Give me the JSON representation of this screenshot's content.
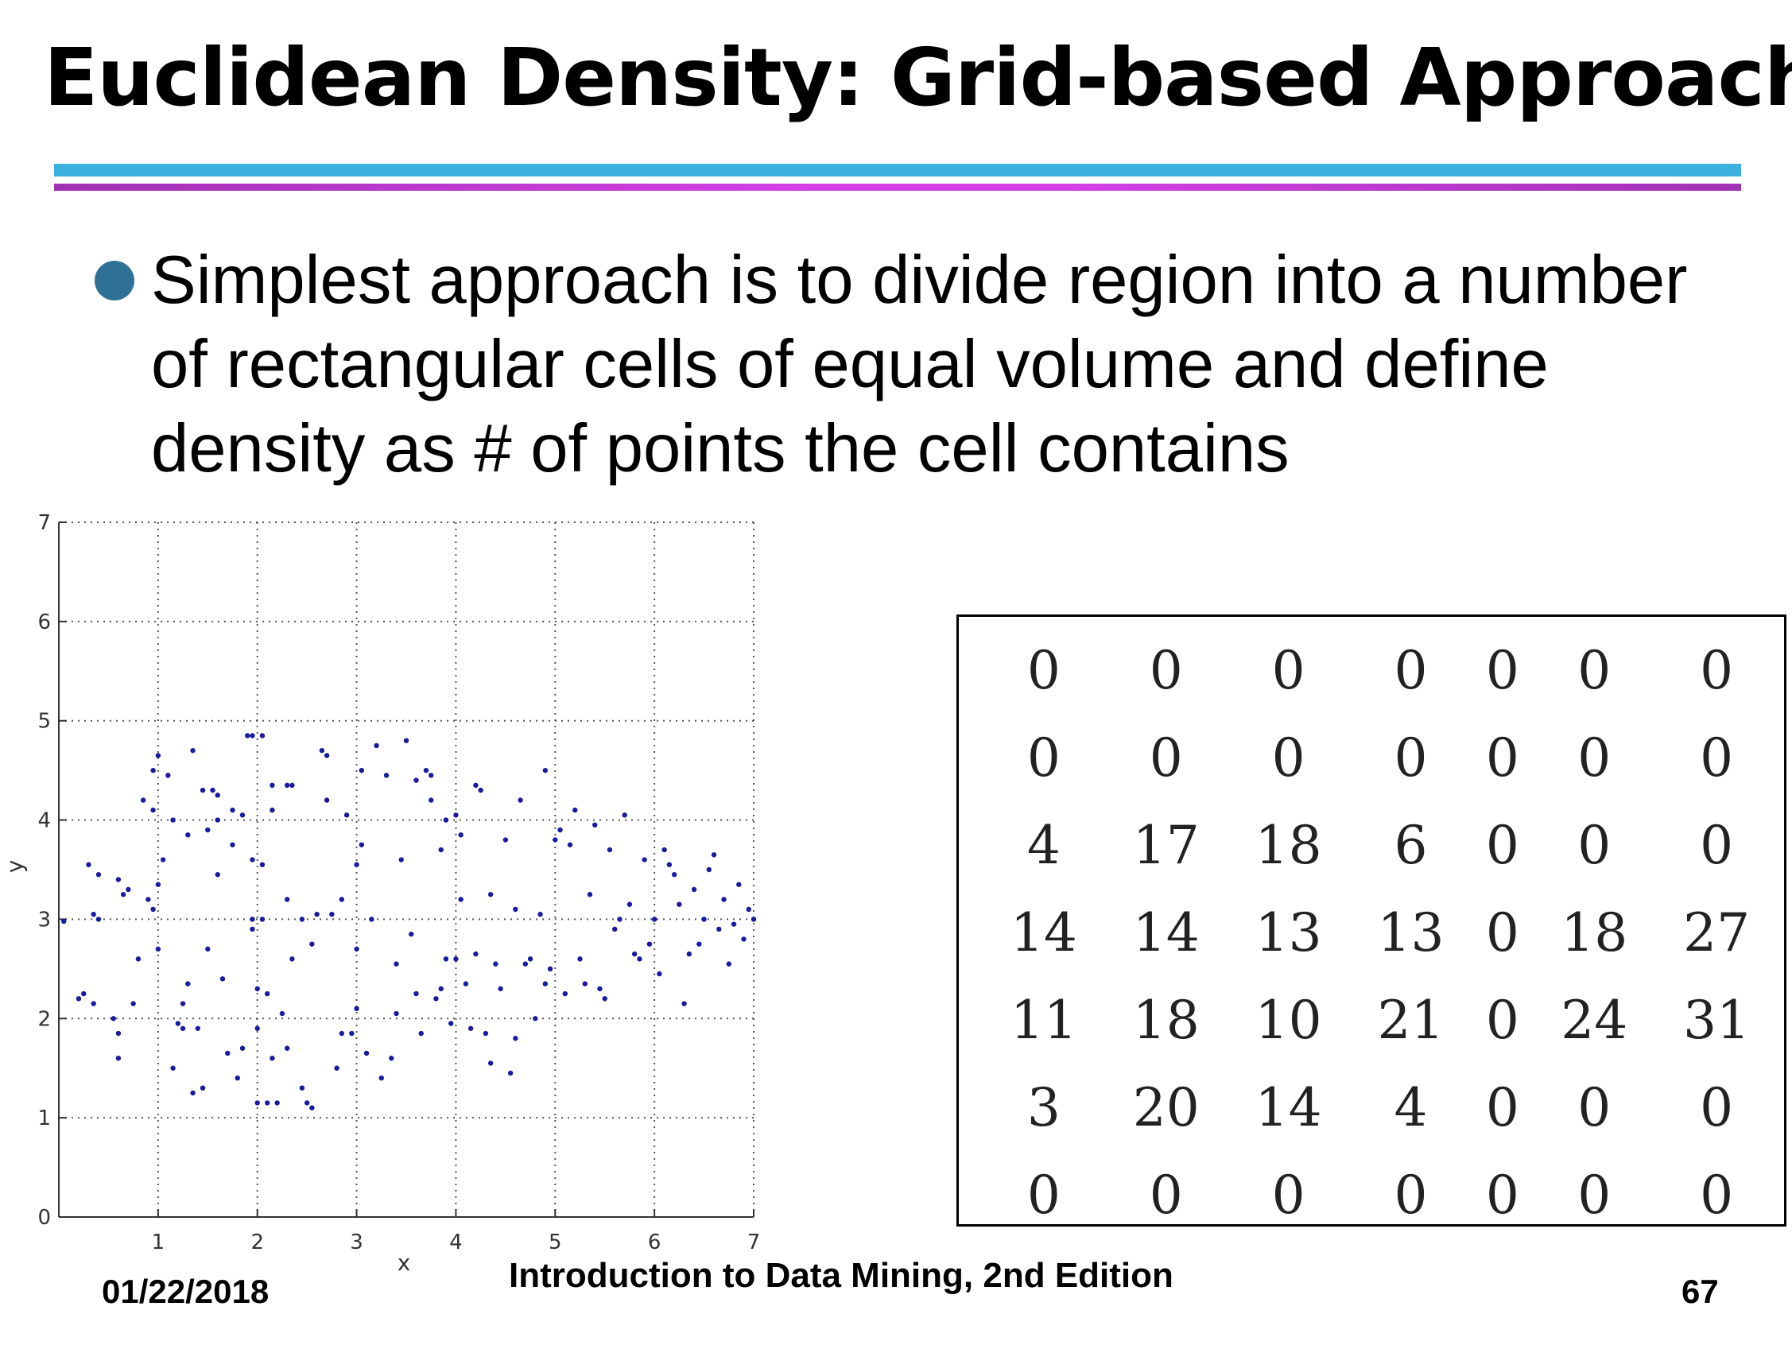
{
  "slide": {
    "title": "Euclidean Density: Grid-based Approach",
    "bullet": "Simplest approach is to divide region into a number of rectangular cells of equal volume and define density as # of points the cell contains"
  },
  "footer": {
    "date": "01/22/2018",
    "center": "Introduction to Data Mining, 2nd Edition",
    "page": "67"
  },
  "colors": {
    "rule_blue": "#3cb1e0",
    "rule_purple": "#c63ad6",
    "bullet": "#2f7196",
    "points": "#1a1aa0"
  },
  "matrix": {
    "rows": [
      [
        "0",
        "0",
        "0",
        "0",
        "0",
        "0",
        "0"
      ],
      [
        "0",
        "0",
        "0",
        "0",
        "0",
        "0",
        "0"
      ],
      [
        "4",
        "17",
        "18",
        "6",
        "0",
        "0",
        "0"
      ],
      [
        "14",
        "14",
        "13",
        "13",
        "0",
        "18",
        "27"
      ],
      [
        "11",
        "18",
        "10",
        "21",
        "0",
        "24",
        "31"
      ],
      [
        "3",
        "20",
        "14",
        "4",
        "0",
        "0",
        "0"
      ],
      [
        "0",
        "0",
        "0",
        "0",
        "0",
        "0",
        "0"
      ]
    ]
  },
  "chart_data": {
    "type": "scatter",
    "xlabel": "x",
    "ylabel": "y",
    "xlim": [
      0,
      7
    ],
    "ylim": [
      0,
      7
    ],
    "grid": true,
    "xticks": [
      "1",
      "2",
      "3",
      "4",
      "5",
      "6",
      "7"
    ],
    "yticks": [
      "0",
      "1",
      "2",
      "3",
      "4",
      "5",
      "6",
      "7"
    ],
    "series": [
      {
        "color": "#1a1aa0",
        "points": [
          [
            0.05,
            2.98
          ],
          [
            0.2,
            2.2
          ],
          [
            0.25,
            2.25
          ],
          [
            0.3,
            3.55
          ],
          [
            0.35,
            2.15
          ],
          [
            0.4,
            3.45
          ],
          [
            0.4,
            3.0
          ],
          [
            0.35,
            3.05
          ],
          [
            0.55,
            2.0
          ],
          [
            0.6,
            1.85
          ],
          [
            0.6,
            1.6
          ],
          [
            0.6,
            3.4
          ],
          [
            0.65,
            3.25
          ],
          [
            0.7,
            3.3
          ],
          [
            0.75,
            2.15
          ],
          [
            0.8,
            2.6
          ],
          [
            0.85,
            4.2
          ],
          [
            0.9,
            3.2
          ],
          [
            0.95,
            4.5
          ],
          [
            0.95,
            4.1
          ],
          [
            0.95,
            3.1
          ],
          [
            1.0,
            3.35
          ],
          [
            1.0,
            2.7
          ],
          [
            1.05,
            3.6
          ],
          [
            1.0,
            4.65
          ],
          [
            1.1,
            4.45
          ],
          [
            1.15,
            4.0
          ],
          [
            1.15,
            1.5
          ],
          [
            1.2,
            1.95
          ],
          [
            1.25,
            1.9
          ],
          [
            1.25,
            2.15
          ],
          [
            1.3,
            2.35
          ],
          [
            1.3,
            3.85
          ],
          [
            1.35,
            4.7
          ],
          [
            1.35,
            1.25
          ],
          [
            1.4,
            1.9
          ],
          [
            1.45,
            1.3
          ],
          [
            1.45,
            4.3
          ],
          [
            1.5,
            3.9
          ],
          [
            1.5,
            2.7
          ],
          [
            1.55,
            4.3
          ],
          [
            1.6,
            4.25
          ],
          [
            1.6,
            4.0
          ],
          [
            1.6,
            3.45
          ],
          [
            1.65,
            2.4
          ],
          [
            1.7,
            1.65
          ],
          [
            1.75,
            3.75
          ],
          [
            1.75,
            4.1
          ],
          [
            1.8,
            1.4
          ],
          [
            1.85,
            1.7
          ],
          [
            1.85,
            4.05
          ],
          [
            1.9,
            4.85
          ],
          [
            1.95,
            4.85
          ],
          [
            1.95,
            3.6
          ],
          [
            1.95,
            3.0
          ],
          [
            1.95,
            2.9
          ],
          [
            2.0,
            2.3
          ],
          [
            2.0,
            1.15
          ],
          [
            2.0,
            1.9
          ],
          [
            2.05,
            4.85
          ],
          [
            2.05,
            3.55
          ],
          [
            2.05,
            3.0
          ],
          [
            2.1,
            1.15
          ],
          [
            2.1,
            2.25
          ],
          [
            2.15,
            4.35
          ],
          [
            2.15,
            4.1
          ],
          [
            2.15,
            1.6
          ],
          [
            2.2,
            1.15
          ],
          [
            2.25,
            2.05
          ],
          [
            2.3,
            4.35
          ],
          [
            2.3,
            3.2
          ],
          [
            2.3,
            1.7
          ],
          [
            2.35,
            2.6
          ],
          [
            2.35,
            4.35
          ],
          [
            2.45,
            3.0
          ],
          [
            2.45,
            1.3
          ],
          [
            2.5,
            1.15
          ],
          [
            2.55,
            2.75
          ],
          [
            2.55,
            1.1
          ],
          [
            2.6,
            3.05
          ],
          [
            2.65,
            4.7
          ],
          [
            2.7,
            4.65
          ],
          [
            2.7,
            4.2
          ],
          [
            2.75,
            3.05
          ],
          [
            2.8,
            1.5
          ],
          [
            2.85,
            1.85
          ],
          [
            2.85,
            3.2
          ],
          [
            2.9,
            4.05
          ],
          [
            2.95,
            1.85
          ],
          [
            3.0,
            2.1
          ],
          [
            3.0,
            2.7
          ],
          [
            3.0,
            3.55
          ],
          [
            3.05,
            4.5
          ],
          [
            3.05,
            3.75
          ],
          [
            3.1,
            1.65
          ],
          [
            3.15,
            3.0
          ],
          [
            3.2,
            4.75
          ],
          [
            3.25,
            1.4
          ],
          [
            3.3,
            4.45
          ],
          [
            3.35,
            1.6
          ],
          [
            3.4,
            2.05
          ],
          [
            3.4,
            2.55
          ],
          [
            3.45,
            3.6
          ],
          [
            3.5,
            4.8
          ],
          [
            3.55,
            2.85
          ],
          [
            3.6,
            4.4
          ],
          [
            3.6,
            2.25
          ],
          [
            3.65,
            1.85
          ],
          [
            3.7,
            4.5
          ],
          [
            3.75,
            4.45
          ],
          [
            3.75,
            4.2
          ],
          [
            3.8,
            2.2
          ],
          [
            3.85,
            2.3
          ],
          [
            3.85,
            3.7
          ],
          [
            3.9,
            2.6
          ],
          [
            3.9,
            4.0
          ],
          [
            3.95,
            1.95
          ],
          [
            4.0,
            4.05
          ],
          [
            4.0,
            2.6
          ],
          [
            4.05,
            3.85
          ],
          [
            4.05,
            3.2
          ],
          [
            4.1,
            2.35
          ],
          [
            4.15,
            1.9
          ],
          [
            4.2,
            4.35
          ],
          [
            4.2,
            2.65
          ],
          [
            4.25,
            4.3
          ],
          [
            4.3,
            1.85
          ],
          [
            4.35,
            1.55
          ],
          [
            4.35,
            3.25
          ],
          [
            4.4,
            2.55
          ],
          [
            4.45,
            2.3
          ],
          [
            4.5,
            3.8
          ],
          [
            4.55,
            1.45
          ],
          [
            4.6,
            1.8
          ],
          [
            4.6,
            3.1
          ],
          [
            4.65,
            4.2
          ],
          [
            4.7,
            2.55
          ],
          [
            4.75,
            2.6
          ],
          [
            4.8,
            2.0
          ],
          [
            4.85,
            3.05
          ],
          [
            4.9,
            4.5
          ],
          [
            4.9,
            2.35
          ],
          [
            4.95,
            2.5
          ],
          [
            5.0,
            3.8
          ],
          [
            5.05,
            3.9
          ],
          [
            5.1,
            2.25
          ],
          [
            5.15,
            3.75
          ],
          [
            5.2,
            4.1
          ],
          [
            5.25,
            2.6
          ],
          [
            5.3,
            2.35
          ],
          [
            5.35,
            3.25
          ],
          [
            5.4,
            3.95
          ],
          [
            5.45,
            2.3
          ],
          [
            5.5,
            2.2
          ],
          [
            5.55,
            3.7
          ],
          [
            5.6,
            2.9
          ],
          [
            5.65,
            3.0
          ],
          [
            5.7,
            4.05
          ],
          [
            5.75,
            3.15
          ],
          [
            5.8,
            2.65
          ],
          [
            5.85,
            2.6
          ],
          [
            5.9,
            3.6
          ],
          [
            5.95,
            2.75
          ],
          [
            6.0,
            3.0
          ],
          [
            6.05,
            2.45
          ],
          [
            6.1,
            3.7
          ],
          [
            6.15,
            3.55
          ],
          [
            6.2,
            3.45
          ],
          [
            6.25,
            3.15
          ],
          [
            6.3,
            2.15
          ],
          [
            6.35,
            2.65
          ],
          [
            6.4,
            3.3
          ],
          [
            6.45,
            2.75
          ],
          [
            6.5,
            3.0
          ],
          [
            6.55,
            3.5
          ],
          [
            6.6,
            3.65
          ],
          [
            6.65,
            2.9
          ],
          [
            6.7,
            3.2
          ],
          [
            6.75,
            2.55
          ],
          [
            6.8,
            2.95
          ],
          [
            6.85,
            3.35
          ],
          [
            6.9,
            2.8
          ],
          [
            6.95,
            3.1
          ],
          [
            7.0,
            3.0
          ]
        ]
      }
    ]
  }
}
